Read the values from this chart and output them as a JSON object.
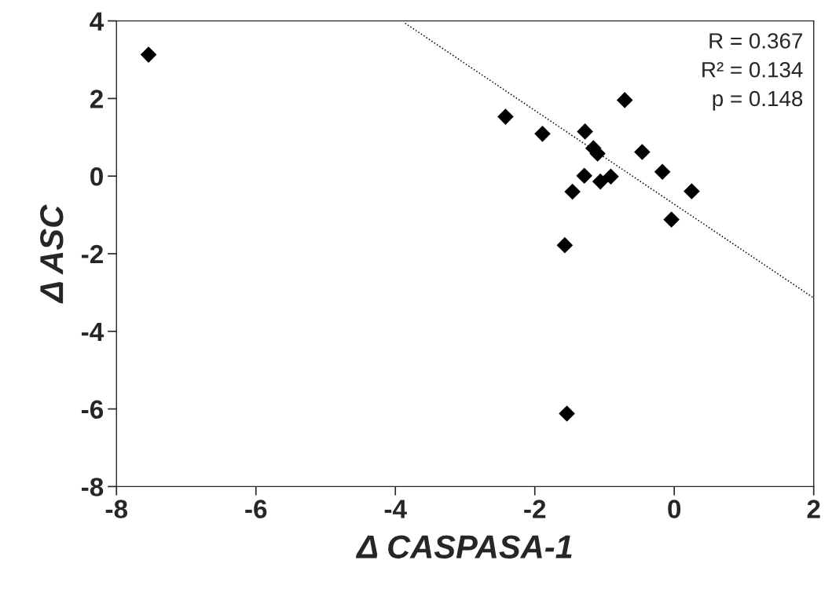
{
  "chart_data": {
    "type": "scatter",
    "xlabel": "Δ CASPASA-1",
    "ylabel": "Δ ASC",
    "series": [
      {
        "color": "#000000",
        "marker": "diamond",
        "x": [
          -7.54,
          -2.42,
          -1.89,
          -1.28,
          -0.71,
          -1.16,
          -1.1,
          -0.46,
          -1.29,
          -1.06,
          -0.91,
          -1.46,
          -0.17,
          0.25,
          -0.04,
          -1.57,
          -1.54
        ],
        "values": [
          3.13,
          1.53,
          1.09,
          1.15,
          1.96,
          0.72,
          0.58,
          0.62,
          0.01,
          -0.14,
          -0.01,
          -0.4,
          0.11,
          -0.39,
          -1.12,
          -1.78,
          -6.12
        ]
      },
      {
        "type": "line",
        "color": "#000000",
        "line_style": "dotted",
        "x": [
          -3.86,
          2
        ],
        "values": [
          3.94,
          -3.14
        ]
      }
    ],
    "annotations": [
      "R = 0.367",
      "R² = 0.134",
      "p = 0.148"
    ],
    "xlim": [
      -8,
      2
    ],
    "xticks": [
      -8,
      -6,
      -4,
      -2,
      0,
      2
    ],
    "ylim": [
      -8,
      4
    ],
    "yticks": [
      -8,
      -6,
      -4,
      -2,
      0,
      2,
      4
    ],
    "grid": false
  }
}
